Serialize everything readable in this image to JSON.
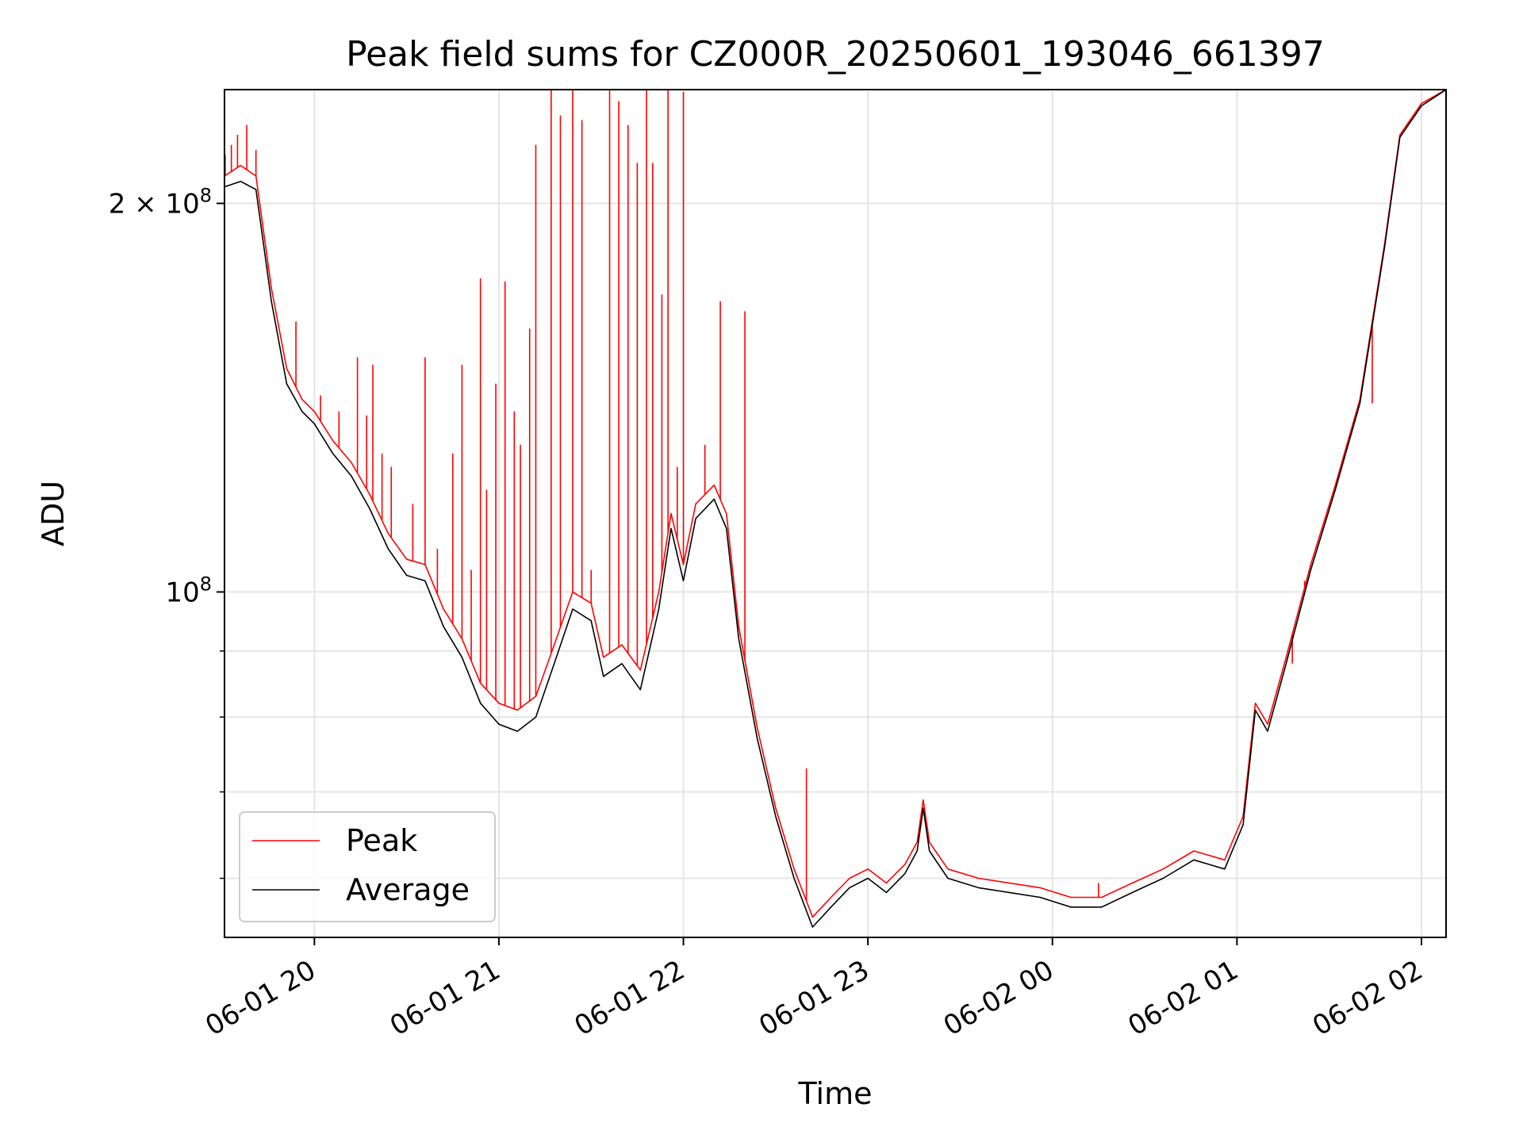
{
  "chart_data": {
    "type": "line",
    "title": "Peak field sums for CZ000R_20250601_193046_661397",
    "xlabel": "Time",
    "ylabel": "ADU",
    "y_scale": "log",
    "xlim": [
      "06-01 19:30:46",
      "06-02 02:08:00"
    ],
    "ylim": [
      54000000,
      245000000
    ],
    "grid": true,
    "legend_position": "lower-left",
    "x_ticks": [
      {
        "t": "06-01 20:00",
        "label": "06-01 20"
      },
      {
        "t": "06-01 21:00",
        "label": "06-01 21"
      },
      {
        "t": "06-01 22:00",
        "label": "06-01 22"
      },
      {
        "t": "06-01 23:00",
        "label": "06-01 23"
      },
      {
        "t": "06-02 00:00",
        "label": "06-02 00"
      },
      {
        "t": "06-02 01:00",
        "label": "06-02 01"
      },
      {
        "t": "06-02 02:00",
        "label": "06-02 02"
      }
    ],
    "y_major_ticks": [
      {
        "value": 100000000,
        "base": "10",
        "exp": "8",
        "prefix": ""
      },
      {
        "value": 200000000,
        "base": "10",
        "exp": "8",
        "prefix": "2 × "
      }
    ],
    "y_minor_ticks": [
      60000000,
      70000000,
      80000000,
      90000000
    ],
    "series": [
      {
        "name": "Average",
        "color": "#000000",
        "points": [
          [
            "06-01 19:30:46",
            206000000
          ],
          [
            "06-01 19:36",
            208000000
          ],
          [
            "06-01 19:41",
            205000000
          ],
          [
            "06-01 19:46",
            168000000
          ],
          [
            "06-01 19:51",
            145000000
          ],
          [
            "06-01 19:56",
            138000000
          ],
          [
            "06-01 20:00",
            135000000
          ],
          [
            "06-01 20:06",
            128000000
          ],
          [
            "06-01 20:12",
            123000000
          ],
          [
            "06-01 20:18",
            116000000
          ],
          [
            "06-01 20:24",
            108000000
          ],
          [
            "06-01 20:30",
            103000000
          ],
          [
            "06-01 20:36",
            102000000
          ],
          [
            "06-01 20:42",
            94000000
          ],
          [
            "06-01 20:48",
            89000000
          ],
          [
            "06-01 20:54",
            82000000
          ],
          [
            "06-01 21:00",
            79000000
          ],
          [
            "06-01 21:06",
            78000000
          ],
          [
            "06-01 21:12",
            80000000
          ],
          [
            "06-01 21:18",
            88000000
          ],
          [
            "06-01 21:24",
            97000000
          ],
          [
            "06-01 21:30",
            95000000
          ],
          [
            "06-01 21:34",
            86000000
          ],
          [
            "06-01 21:40",
            88000000
          ],
          [
            "06-01 21:46",
            84000000
          ],
          [
            "06-01 21:52",
            97000000
          ],
          [
            "06-01 21:56",
            112000000
          ],
          [
            "06-01 22:00",
            102000000
          ],
          [
            "06-01 22:04",
            114000000
          ],
          [
            "06-01 22:10",
            118000000
          ],
          [
            "06-01 22:14",
            112000000
          ],
          [
            "06-01 22:18",
            92000000
          ],
          [
            "06-01 22:24",
            77000000
          ],
          [
            "06-01 22:30",
            67000000
          ],
          [
            "06-01 22:36",
            60000000
          ],
          [
            "06-01 22:42",
            55000000
          ],
          [
            "06-01 22:48",
            57000000
          ],
          [
            "06-01 22:54",
            59000000
          ],
          [
            "06-01 23:00",
            60000000
          ],
          [
            "06-01 23:06",
            58500000
          ],
          [
            "06-01 23:12",
            60500000
          ],
          [
            "06-01 23:16",
            63000000
          ],
          [
            "06-01 23:18",
            68000000
          ],
          [
            "06-01 23:20",
            63000000
          ],
          [
            "06-01 23:26",
            60000000
          ],
          [
            "06-01 23:36",
            59000000
          ],
          [
            "06-01 23:46",
            58500000
          ],
          [
            "06-01 23:56",
            58000000
          ],
          [
            "06-02 00:06",
            57000000
          ],
          [
            "06-02 00:16",
            57000000
          ],
          [
            "06-02 00:26",
            58500000
          ],
          [
            "06-02 00:36",
            60000000
          ],
          [
            "06-02 00:46",
            62000000
          ],
          [
            "06-02 00:56",
            61000000
          ],
          [
            "06-02 01:02",
            66000000
          ],
          [
            "06-02 01:06",
            81000000
          ],
          [
            "06-02 01:10",
            78000000
          ],
          [
            "06-02 01:16",
            88000000
          ],
          [
            "06-02 01:24",
            104000000
          ],
          [
            "06-02 01:32",
            120000000
          ],
          [
            "06-02 01:40",
            140000000
          ],
          [
            "06-02 01:48",
            185000000
          ],
          [
            "06-02 01:53",
            225000000
          ],
          [
            "06-02 02:00",
            238000000
          ],
          [
            "06-02 02:08",
            245000000
          ]
        ]
      },
      {
        "name": "Peak",
        "color": "#ff0000",
        "points": [
          [
            "06-01 19:30:46",
            210000000
          ],
          [
            "06-01 19:36",
            214000000
          ],
          [
            "06-01 19:41",
            210000000
          ],
          [
            "06-01 19:46",
            172000000
          ],
          [
            "06-01 19:51",
            149000000
          ],
          [
            "06-01 19:56",
            141000000
          ],
          [
            "06-01 20:00",
            138000000
          ],
          [
            "06-01 20:06",
            131000000
          ],
          [
            "06-01 20:12",
            126000000
          ],
          [
            "06-01 20:18",
            119000000
          ],
          [
            "06-01 20:24",
            111000000
          ],
          [
            "06-01 20:30",
            106000000
          ],
          [
            "06-01 20:36",
            105000000
          ],
          [
            "06-01 20:42",
            97000000
          ],
          [
            "06-01 20:48",
            92000000
          ],
          [
            "06-01 20:54",
            85000000
          ],
          [
            "06-01 21:00",
            82000000
          ],
          [
            "06-01 21:06",
            81000000
          ],
          [
            "06-01 21:12",
            83000000
          ],
          [
            "06-01 21:18",
            91000000
          ],
          [
            "06-01 21:24",
            100000000
          ],
          [
            "06-01 21:30",
            98000000
          ],
          [
            "06-01 21:34",
            89000000
          ],
          [
            "06-01 21:40",
            91000000
          ],
          [
            "06-01 21:46",
            87000000
          ],
          [
            "06-01 21:52",
            100000000
          ],
          [
            "06-01 21:56",
            115000000
          ],
          [
            "06-01 22:00",
            105000000
          ],
          [
            "06-01 22:04",
            117000000
          ],
          [
            "06-01 22:10",
            121000000
          ],
          [
            "06-01 22:14",
            115000000
          ],
          [
            "06-01 22:18",
            94000000
          ],
          [
            "06-01 22:24",
            78500000
          ],
          [
            "06-01 22:30",
            68000000
          ],
          [
            "06-01 22:36",
            61000000
          ],
          [
            "06-01 22:42",
            56000000
          ],
          [
            "06-01 22:48",
            58000000
          ],
          [
            "06-01 22:54",
            60000000
          ],
          [
            "06-01 23:00",
            61000000
          ],
          [
            "06-01 23:06",
            59500000
          ],
          [
            "06-01 23:12",
            61500000
          ],
          [
            "06-01 23:16",
            64000000
          ],
          [
            "06-01 23:18",
            69000000
          ],
          [
            "06-01 23:20",
            64000000
          ],
          [
            "06-01 23:26",
            61000000
          ],
          [
            "06-01 23:36",
            60000000
          ],
          [
            "06-01 23:46",
            59500000
          ],
          [
            "06-01 23:56",
            59000000
          ],
          [
            "06-02 00:06",
            58000000
          ],
          [
            "06-02 00:16",
            58000000
          ],
          [
            "06-02 00:26",
            59500000
          ],
          [
            "06-02 00:36",
            61000000
          ],
          [
            "06-02 00:46",
            63000000
          ],
          [
            "06-02 00:56",
            62000000
          ],
          [
            "06-02 01:02",
            67000000
          ],
          [
            "06-02 01:06",
            82000000
          ],
          [
            "06-02 01:10",
            79000000
          ],
          [
            "06-02 01:16",
            89000000
          ],
          [
            "06-02 01:24",
            105000000
          ],
          [
            "06-02 01:32",
            121000000
          ],
          [
            "06-02 01:40",
            141000000
          ],
          [
            "06-02 01:48",
            186000000
          ],
          [
            "06-02 01:53",
            226000000
          ],
          [
            "06-02 02:00",
            239000000
          ],
          [
            "06-02 02:08",
            245000000
          ]
        ],
        "spikes": [
          [
            "06-01 19:31",
            218000000
          ],
          [
            "06-01 19:33",
            222000000
          ],
          [
            "06-01 19:35",
            226000000
          ],
          [
            "06-01 19:38",
            230000000
          ],
          [
            "06-01 19:41",
            220000000
          ],
          [
            "06-01 19:45",
            178000000
          ],
          [
            "06-01 19:54",
            162000000
          ],
          [
            "06-01 20:02",
            142000000
          ],
          [
            "06-01 20:08",
            138000000
          ],
          [
            "06-01 20:14",
            152000000
          ],
          [
            "06-01 20:17",
            137000000
          ],
          [
            "06-01 20:19",
            150000000
          ],
          [
            "06-01 20:22",
            128000000
          ],
          [
            "06-01 20:25",
            125000000
          ],
          [
            "06-01 20:32",
            117000000
          ],
          [
            "06-01 20:36",
            152000000
          ],
          [
            "06-01 20:40",
            108000000
          ],
          [
            "06-01 20:45",
            128000000
          ],
          [
            "06-01 20:48",
            150000000
          ],
          [
            "06-01 20:51",
            104000000
          ],
          [
            "06-01 20:54",
            175000000
          ],
          [
            "06-01 20:56",
            120000000
          ],
          [
            "06-01 20:59",
            145000000
          ],
          [
            "06-01 21:02",
            174000000
          ],
          [
            "06-01 21:05",
            138000000
          ],
          [
            "06-01 21:07",
            130000000
          ],
          [
            "06-01 21:10",
            160000000
          ],
          [
            "06-01 21:12",
            222000000
          ],
          [
            "06-01 21:17",
            246000000
          ],
          [
            "06-01 21:20",
            234000000
          ],
          [
            "06-01 21:24",
            246000000
          ],
          [
            "06-01 21:27",
            232000000
          ],
          [
            "06-01 21:30",
            104000000
          ],
          [
            "06-01 21:36",
            246000000
          ],
          [
            "06-01 21:39",
            240000000
          ],
          [
            "06-01 21:42",
            230000000
          ],
          [
            "06-01 21:45",
            215000000
          ],
          [
            "06-01 21:48",
            246000000
          ],
          [
            "06-01 21:50",
            215000000
          ],
          [
            "06-01 21:53",
            170000000
          ],
          [
            "06-01 21:55",
            246000000
          ],
          [
            "06-01 21:58",
            125000000
          ],
          [
            "06-01 22:00",
            244000000
          ],
          [
            "06-01 22:07",
            130000000
          ],
          [
            "06-01 22:12",
            168000000
          ],
          [
            "06-01 22:20",
            165000000
          ],
          [
            "06-01 22:40",
            73000000
          ],
          [
            "06-02 00:15",
            59500000
          ],
          [
            "06-02 01:18",
            88000000
          ],
          [
            "06-02 01:22",
            102000000
          ],
          [
            "06-02 01:44",
            140000000
          ]
        ]
      }
    ]
  }
}
